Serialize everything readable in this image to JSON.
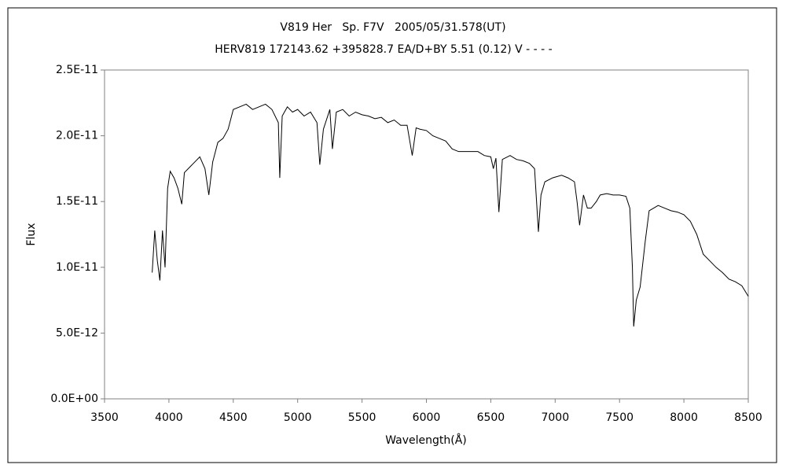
{
  "chart_data": {
    "type": "line",
    "title": "V819 Her   Sp. F7V   2005/05/31.578(UT)",
    "subtitle": "HERV819 172143.62 +395828.7 EA/D+BY 5.51 (0.12) V - - - -",
    "x_label": "Wavelength(Å)",
    "y_label": "Flux",
    "xlim": [
      3500,
      8500
    ],
    "xticks": [
      3500,
      4000,
      4500,
      5000,
      5500,
      6000,
      6500,
      7000,
      7500,
      8000,
      8500
    ],
    "ylim": [
      0,
      2.5e-11
    ],
    "yticks": [
      {
        "value": 0,
        "label": "0.0E+00"
      },
      {
        "value": 5e-12,
        "label": "5.0E-12"
      },
      {
        "value": 1e-11,
        "label": "1.0E-11"
      },
      {
        "value": 1.5e-11,
        "label": "1.5E-11"
      },
      {
        "value": 2e-11,
        "label": "2.0E-11"
      },
      {
        "value": 2.5e-11,
        "label": "2.5E-11"
      }
    ],
    "grid": false,
    "x": [
      3870,
      3890,
      3910,
      3930,
      3950,
      3970,
      3990,
      4010,
      4040,
      4070,
      4100,
      4120,
      4160,
      4200,
      4240,
      4280,
      4310,
      4340,
      4380,
      4420,
      4460,
      4500,
      4550,
      4600,
      4650,
      4700,
      4750,
      4800,
      4850,
      4861,
      4880,
      4920,
      4960,
      5000,
      5050,
      5100,
      5150,
      5172,
      5200,
      5250,
      5270,
      5300,
      5350,
      5400,
      5450,
      5500,
      5550,
      5600,
      5650,
      5700,
      5750,
      5800,
      5850,
      5890,
      5920,
      5950,
      6000,
      6050,
      6100,
      6150,
      6200,
      6250,
      6300,
      6350,
      6400,
      6450,
      6500,
      6520,
      6540,
      6563,
      6590,
      6650,
      6700,
      6750,
      6800,
      6840,
      6870,
      6890,
      6920,
      6980,
      7050,
      7100,
      7150,
      7170,
      7190,
      7220,
      7250,
      7280,
      7320,
      7350,
      7400,
      7450,
      7500,
      7550,
      7580,
      7600,
      7610,
      7630,
      7660,
      7700,
      7730,
      7800,
      7850,
      7900,
      7950,
      8000,
      8050,
      8100,
      8150,
      8200,
      8250,
      8300,
      8350,
      8400,
      8450,
      8500
    ],
    "series": [
      {
        "name": "Flux",
        "color": "#000000",
        "values": [
          9.6e-12,
          1.28e-11,
          1.05e-11,
          9e-12,
          1.28e-11,
          1e-11,
          1.6e-11,
          1.73e-11,
          1.68e-11,
          1.6e-11,
          1.48e-11,
          1.72e-11,
          1.76e-11,
          1.8e-11,
          1.84e-11,
          1.75e-11,
          1.55e-11,
          1.8e-11,
          1.95e-11,
          1.98e-11,
          2.05e-11,
          2.2e-11,
          2.22e-11,
          2.24e-11,
          2.2e-11,
          2.22e-11,
          2.24e-11,
          2.2e-11,
          2.1e-11,
          1.68e-11,
          2.15e-11,
          2.22e-11,
          2.18e-11,
          2.2e-11,
          2.15e-11,
          2.18e-11,
          2.1e-11,
          1.78e-11,
          2.05e-11,
          2.2e-11,
          1.9e-11,
          2.18e-11,
          2.2e-11,
          2.15e-11,
          2.18e-11,
          2.16e-11,
          2.15e-11,
          2.13e-11,
          2.14e-11,
          2.1e-11,
          2.12e-11,
          2.08e-11,
          2.08e-11,
          1.85e-11,
          2.06e-11,
          2.05e-11,
          2.04e-11,
          2e-11,
          1.98e-11,
          1.96e-11,
          1.9e-11,
          1.88e-11,
          1.88e-11,
          1.88e-11,
          1.88e-11,
          1.85e-11,
          1.84e-11,
          1.75e-11,
          1.83e-11,
          1.42e-11,
          1.82e-11,
          1.85e-11,
          1.82e-11,
          1.81e-11,
          1.79e-11,
          1.75e-11,
          1.27e-11,
          1.55e-11,
          1.65e-11,
          1.68e-11,
          1.7e-11,
          1.68e-11,
          1.65e-11,
          1.5e-11,
          1.32e-11,
          1.55e-11,
          1.45e-11,
          1.45e-11,
          1.5e-11,
          1.55e-11,
          1.56e-11,
          1.55e-11,
          1.55e-11,
          1.54e-11,
          1.45e-11,
          1e-11,
          5.5e-12,
          7.5e-12,
          8.5e-12,
          1.2e-11,
          1.43e-11,
          1.47e-11,
          1.45e-11,
          1.43e-11,
          1.42e-11,
          1.4e-11,
          1.35e-11,
          1.25e-11,
          1.1e-11,
          1.05e-11,
          1e-11,
          9.6e-12,
          9.1e-12,
          8.9e-12,
          8.6e-12,
          7.8e-12
        ]
      }
    ]
  }
}
